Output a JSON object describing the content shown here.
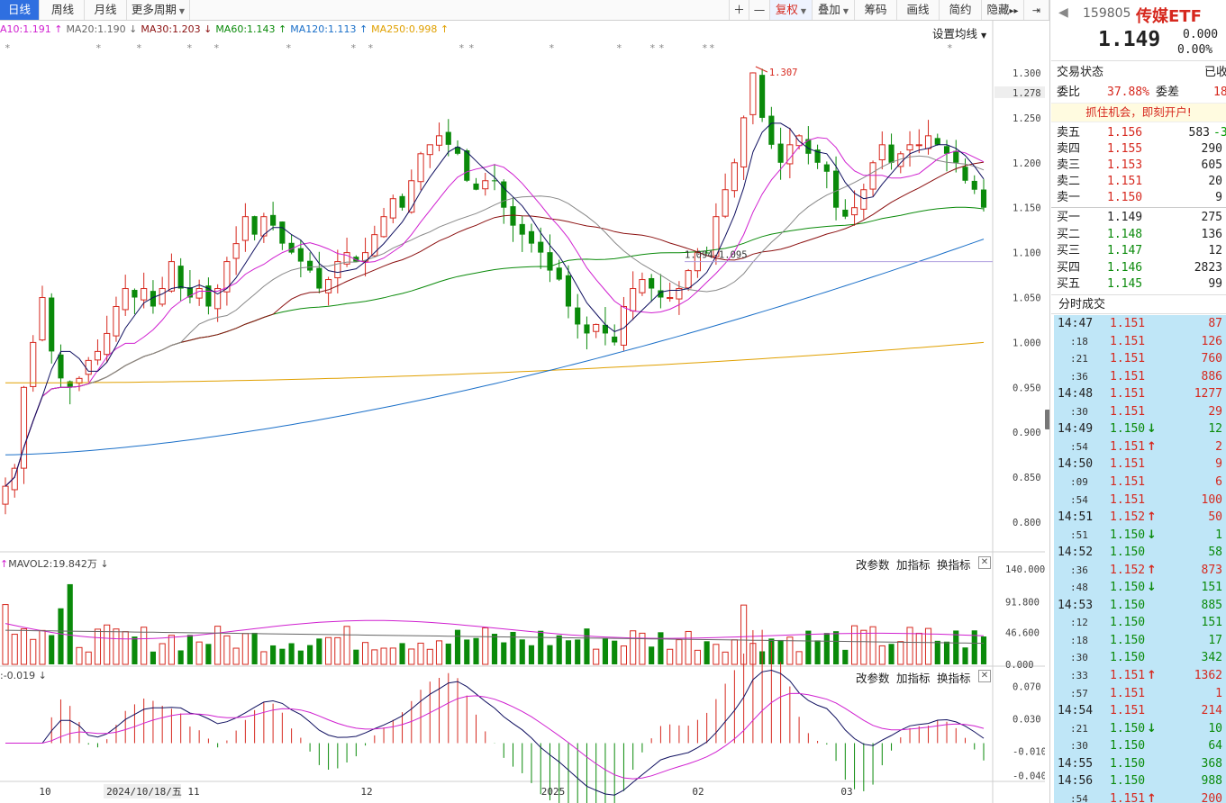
{
  "toolbar": {
    "tabs": [
      "日线",
      "周线",
      "月线",
      "更多周期"
    ],
    "right_buttons": [
      "＋",
      "—",
      "复权",
      "叠加",
      "筹码",
      "画线",
      "简约",
      "隐藏"
    ],
    "hide_arrows": "▸▸"
  },
  "ma_legend": [
    {
      "text": "A10:1.191",
      "arrow": "↑",
      "color": "#d020d0"
    },
    {
      "text": "MA20:1.190",
      "arrow": "↓",
      "color": "#666666"
    },
    {
      "text": "MA30:1.203",
      "arrow": "↓",
      "color": "#8b1010"
    },
    {
      "text": "MA60:1.143",
      "arrow": "↑",
      "color": "#0a8a0a"
    },
    {
      "text": "MA120:1.113",
      "arrow": "↑",
      "color": "#1a6fc8"
    },
    {
      "text": "MA250:0.998",
      "arrow": "↑",
      "color": "#e0a000"
    }
  ],
  "set_ma_label": "设置均线",
  "price_axis": [
    "1.300",
    "1.278",
    "1.250",
    "1.200",
    "1.150",
    "1.100",
    "1.050",
    "1.000",
    "0.950",
    "0.900",
    "0.850",
    "0.800"
  ],
  "annotations": {
    "high": "1.307",
    "range": "1.094-1.095"
  },
  "volume_header": {
    "text": "MAVOL2:19.842万",
    "buttons": [
      "改参数",
      "加指标",
      "换指标"
    ]
  },
  "volume_axis": [
    "140.000",
    "91.800",
    "46.600",
    "0.000"
  ],
  "macd_header": {
    "text": ":-0.019",
    "buttons": [
      "改参数",
      "加指标",
      "换指标"
    ]
  },
  "macd_axis": [
    "0.070",
    "0.030",
    "-0.010",
    "-0.040"
  ],
  "date_axis": [
    "10",
    "2024/10/18/五",
    "11",
    "12",
    "2025",
    "02",
    "03"
  ],
  "quote": {
    "back": "◀",
    "code": "159805",
    "name": "传媒ETF",
    "price": "1.149",
    "change": "0.000",
    "pct": "0.00%",
    "status_label": "交易状态",
    "status_value": "已收",
    "wb_label": "委比",
    "wb_value": "37.88%",
    "wc_label": "委差",
    "wc_value": "18",
    "ad": "抓住机会，即刻开户!"
  },
  "order_book": {
    "asks": [
      {
        "label": "卖五",
        "price": "1.156",
        "vol": "583",
        "ext": "-3"
      },
      {
        "label": "卖四",
        "price": "1.155",
        "vol": "290"
      },
      {
        "label": "卖三",
        "price": "1.153",
        "vol": "605"
      },
      {
        "label": "卖二",
        "price": "1.151",
        "vol": "20"
      },
      {
        "label": "卖一",
        "price": "1.150",
        "vol": "9"
      }
    ],
    "bids": [
      {
        "label": "买一",
        "price": "1.149",
        "vol": "275"
      },
      {
        "label": "买二",
        "price": "1.148",
        "vol": "136"
      },
      {
        "label": "买三",
        "price": "1.147",
        "vol": "12"
      },
      {
        "label": "买四",
        "price": "1.146",
        "vol": "2823"
      },
      {
        "label": "买五",
        "price": "1.145",
        "vol": "99"
      }
    ]
  },
  "ticks_title": "分时成交",
  "ticks": [
    {
      "t": "14:47",
      "sub": false,
      "p": "1.151",
      "a": "",
      "v": "87",
      "c": "r"
    },
    {
      "t": ":18",
      "sub": true,
      "p": "1.151",
      "a": "",
      "v": "126",
      "c": "r"
    },
    {
      "t": ":21",
      "sub": true,
      "p": "1.151",
      "a": "",
      "v": "760",
      "c": "r"
    },
    {
      "t": ":36",
      "sub": true,
      "p": "1.151",
      "a": "",
      "v": "886",
      "c": "r"
    },
    {
      "t": "14:48",
      "sub": false,
      "p": "1.151",
      "a": "",
      "v": "1277",
      "c": "r"
    },
    {
      "t": ":30",
      "sub": true,
      "p": "1.151",
      "a": "",
      "v": "29",
      "c": "r"
    },
    {
      "t": "14:49",
      "sub": false,
      "p": "1.150",
      "a": "↓",
      "v": "12",
      "c": "g"
    },
    {
      "t": ":54",
      "sub": true,
      "p": "1.151",
      "a": "↑",
      "v": "2",
      "c": "r"
    },
    {
      "t": "14:50",
      "sub": false,
      "p": "1.151",
      "a": "",
      "v": "9",
      "c": "r"
    },
    {
      "t": ":09",
      "sub": true,
      "p": "1.151",
      "a": "",
      "v": "6",
      "c": "r"
    },
    {
      "t": ":54",
      "sub": true,
      "p": "1.151",
      "a": "",
      "v": "100",
      "c": "r"
    },
    {
      "t": "14:51",
      "sub": false,
      "p": "1.152",
      "a": "↑",
      "v": "50",
      "c": "r"
    },
    {
      "t": ":51",
      "sub": true,
      "p": "1.150",
      "a": "↓",
      "v": "1",
      "c": "g"
    },
    {
      "t": "14:52",
      "sub": false,
      "p": "1.150",
      "a": "",
      "v": "58",
      "c": "g"
    },
    {
      "t": ":36",
      "sub": true,
      "p": "1.152",
      "a": "↑",
      "v": "873",
      "c": "r"
    },
    {
      "t": ":48",
      "sub": true,
      "p": "1.150",
      "a": "↓",
      "v": "151",
      "c": "g"
    },
    {
      "t": "14:53",
      "sub": false,
      "p": "1.150",
      "a": "",
      "v": "885",
      "c": "g"
    },
    {
      "t": ":12",
      "sub": true,
      "p": "1.150",
      "a": "",
      "v": "151",
      "c": "g"
    },
    {
      "t": ":18",
      "sub": true,
      "p": "1.150",
      "a": "",
      "v": "17",
      "c": "g"
    },
    {
      "t": ":30",
      "sub": true,
      "p": "1.150",
      "a": "",
      "v": "342",
      "c": "g"
    },
    {
      "t": ":33",
      "sub": true,
      "p": "1.151",
      "a": "↑",
      "v": "1362",
      "c": "r"
    },
    {
      "t": ":57",
      "sub": true,
      "p": "1.151",
      "a": "",
      "v": "1",
      "c": "r"
    },
    {
      "t": "14:54",
      "sub": false,
      "p": "1.151",
      "a": "",
      "v": "214",
      "c": "r"
    },
    {
      "t": ":21",
      "sub": true,
      "p": "1.150",
      "a": "↓",
      "v": "10",
      "c": "g"
    },
    {
      "t": ":30",
      "sub": true,
      "p": "1.150",
      "a": "",
      "v": "64",
      "c": "g"
    },
    {
      "t": "14:55",
      "sub": false,
      "p": "1.150",
      "a": "",
      "v": "368",
      "c": "g"
    },
    {
      "t": "14:56",
      "sub": false,
      "p": "1.150",
      "a": "",
      "v": "988",
      "c": "g"
    },
    {
      "t": ":54",
      "sub": true,
      "p": "1.151",
      "a": "↑",
      "v": "200",
      "c": "r"
    }
  ],
  "colors": {
    "up": "#d6281e",
    "down": "#0a8a0a",
    "accent": "#2f6fe0"
  },
  "chart_data": {
    "type": "candlestick",
    "price_range": [
      0.77,
      1.315
    ],
    "closes": [
      0.84,
      0.86,
      0.95,
      1.0,
      1.05,
      0.99,
      0.96,
      0.95,
      0.96,
      0.98,
      0.99,
      1.01,
      1.04,
      1.06,
      1.05,
      1.06,
      1.04,
      1.06,
      1.09,
      1.06,
      1.05,
      1.06,
      1.04,
      1.06,
      1.09,
      1.11,
      1.14,
      1.12,
      1.14,
      1.13,
      1.11,
      1.1,
      1.09,
      1.08,
      1.06,
      1.07,
      1.09,
      1.1,
      1.09,
      1.1,
      1.12,
      1.14,
      1.16,
      1.15,
      1.18,
      1.21,
      1.22,
      1.23,
      1.22,
      1.21,
      1.18,
      1.17,
      1.18,
      1.18,
      1.15,
      1.13,
      1.12,
      1.11,
      1.1,
      1.08,
      1.07,
      1.04,
      1.02,
      1.01,
      1.02,
      1.01,
      1.0,
      1.04,
      1.06,
      1.07,
      1.06,
      1.05,
      1.05,
      1.06,
      1.08,
      1.1,
      1.1,
      1.14,
      1.17,
      1.2,
      1.25,
      1.3,
      1.25,
      1.22,
      1.2,
      1.22,
      1.23,
      1.21,
      1.2,
      1.19,
      1.15,
      1.14,
      1.15,
      1.17,
      1.2,
      1.22,
      1.2,
      1.21,
      1.22,
      1.22,
      1.23,
      1.22,
      1.21,
      1.2,
      1.18,
      1.17,
      1.15
    ],
    "volume_axis_range": [
      0,
      140
    ],
    "macd_range": [
      -0.045,
      0.075
    ]
  }
}
